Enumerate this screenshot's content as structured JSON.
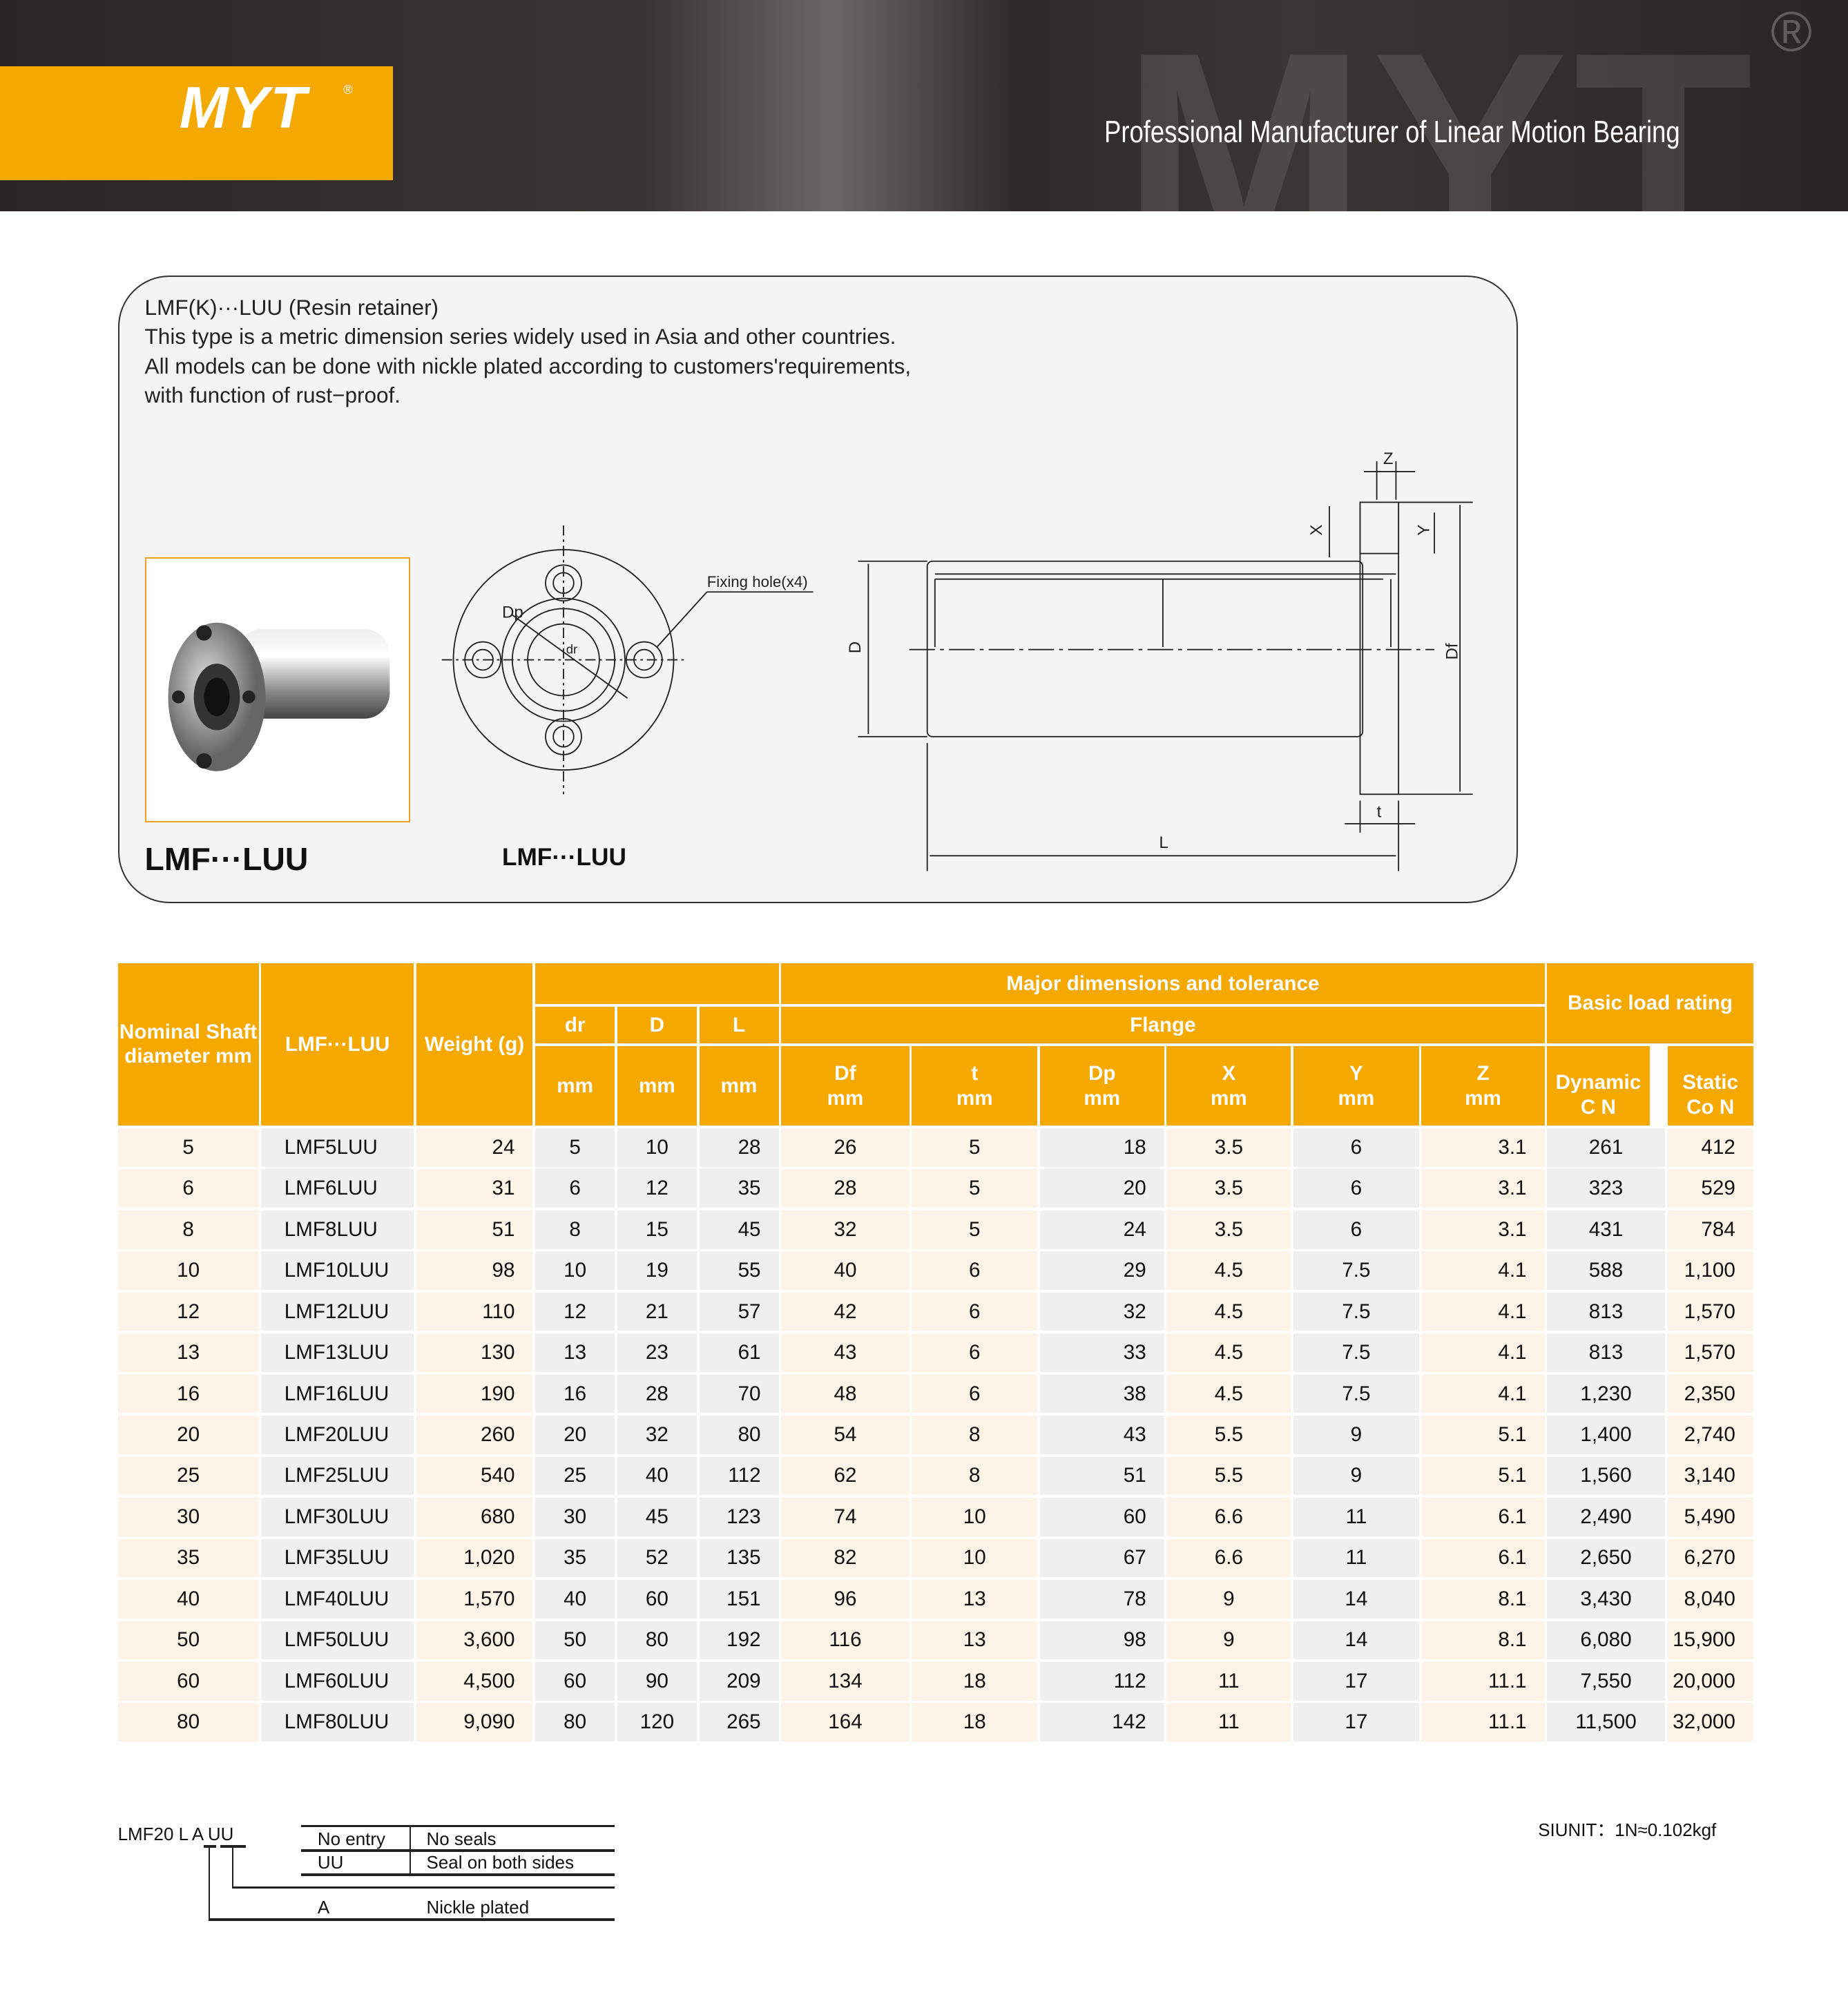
{
  "header": {
    "brand": "MYT",
    "registered": "®",
    "tagline": "Professional  Manufacturer of  Linear  Motion  Bearing",
    "colors": {
      "accent": "#f5a800",
      "dark": "#2b2624"
    }
  },
  "intro": {
    "lines": [
      "LMF(K)···LUU (Resin retainer)",
      "This type is a metric dimension series widely used in Asia and other countries.",
      "All models can be done with nickle plated according to customers'requirements,",
      "with function of rust−proof."
    ]
  },
  "figures": {
    "photo_label": "LMF···LUU",
    "drawing_label": "LMF···LUU",
    "fixing_hole": "Fixing hole(x4)",
    "dims": {
      "Dp": "Dp",
      "dr": "dr",
      "D": "D",
      "Df": "Df",
      "L": "L",
      "t": "t",
      "X": "X",
      "Y": "Y",
      "Z": "Z"
    }
  },
  "table": {
    "headers": {
      "nominal": "Nominal Shaft diameter mm",
      "model": "LMF···LUU",
      "weight": "Weight (g)",
      "major": "Major dimensions and tolerance",
      "flange": "Flange",
      "load": "Basic load rating",
      "dr": "dr",
      "D": "D",
      "L": "L",
      "mm": "mm",
      "Df": "Df",
      "t": "t",
      "Dp": "Dp",
      "X": "X",
      "Y": "Y",
      "Z": "Z",
      "dynamic": "Dynamic C N",
      "static": "Static Co N"
    },
    "rows": [
      [
        "5",
        "LMF5LUU",
        "24",
        "5",
        "10",
        "28",
        "26",
        "5",
        "18",
        "3.5",
        "6",
        "3.1",
        "261",
        "412"
      ],
      [
        "6",
        "LMF6LUU",
        "31",
        "6",
        "12",
        "35",
        "28",
        "5",
        "20",
        "3.5",
        "6",
        "3.1",
        "323",
        "529"
      ],
      [
        "8",
        "LMF8LUU",
        "51",
        "8",
        "15",
        "45",
        "32",
        "5",
        "24",
        "3.5",
        "6",
        "3.1",
        "431",
        "784"
      ],
      [
        "10",
        "LMF10LUU",
        "98",
        "10",
        "19",
        "55",
        "40",
        "6",
        "29",
        "4.5",
        "7.5",
        "4.1",
        "588",
        "1,100"
      ],
      [
        "12",
        "LMF12LUU",
        "110",
        "12",
        "21",
        "57",
        "42",
        "6",
        "32",
        "4.5",
        "7.5",
        "4.1",
        "813",
        "1,570"
      ],
      [
        "13",
        "LMF13LUU",
        "130",
        "13",
        "23",
        "61",
        "43",
        "6",
        "33",
        "4.5",
        "7.5",
        "4.1",
        "813",
        "1,570"
      ],
      [
        "16",
        "LMF16LUU",
        "190",
        "16",
        "28",
        "70",
        "48",
        "6",
        "38",
        "4.5",
        "7.5",
        "4.1",
        "1,230",
        "2,350"
      ],
      [
        "20",
        "LMF20LUU",
        "260",
        "20",
        "32",
        "80",
        "54",
        "8",
        "43",
        "5.5",
        "9",
        "5.1",
        "1,400",
        "2,740"
      ],
      [
        "25",
        "LMF25LUU",
        "540",
        "25",
        "40",
        "112",
        "62",
        "8",
        "51",
        "5.5",
        "9",
        "5.1",
        "1,560",
        "3,140"
      ],
      [
        "30",
        "LMF30LUU",
        "680",
        "30",
        "45",
        "123",
        "74",
        "10",
        "60",
        "6.6",
        "11",
        "6.1",
        "2,490",
        "5,490"
      ],
      [
        "35",
        "LMF35LUU",
        "1,020",
        "35",
        "52",
        "135",
        "82",
        "10",
        "67",
        "6.6",
        "11",
        "6.1",
        "2,650",
        "6,270"
      ],
      [
        "40",
        "LMF40LUU",
        "1,570",
        "40",
        "60",
        "151",
        "96",
        "13",
        "78",
        "9",
        "14",
        "8.1",
        "3,430",
        "8,040"
      ],
      [
        "50",
        "LMF50LUU",
        "3,600",
        "50",
        "80",
        "192",
        "116",
        "13",
        "98",
        "9",
        "14",
        "8.1",
        "6,080",
        "15,900"
      ],
      [
        "60",
        "LMF60LUU",
        "4,500",
        "60",
        "90",
        "209",
        "134",
        "18",
        "112",
        "11",
        "17",
        "11.1",
        "7,550",
        "20,000"
      ],
      [
        "80",
        "LMF80LUU",
        "9,090",
        "80",
        "120",
        "265",
        "164",
        "18",
        "142",
        "11",
        "17",
        "11.1",
        "11,500",
        "32,000"
      ]
    ]
  },
  "legend": {
    "code": "LMF20 L  A UU",
    "no_entry": "No entry",
    "no_seals": "No seals",
    "uu": "UU",
    "seal_both": "Seal on both sides",
    "a": "A",
    "nickle": "Nickle plated",
    "siunit": "SIUNIT：1N≈0.102kgf"
  }
}
